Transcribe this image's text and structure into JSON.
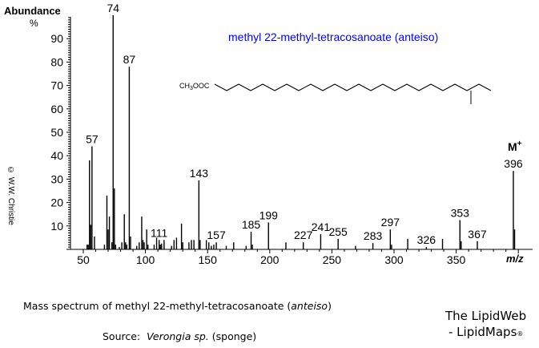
{
  "figure": {
    "compound_title": "methyl 22-methyl-tetracosanoate (anteiso)",
    "structure_label": "CH3OOC",
    "ylabel_title": "Abundance",
    "ylabel_unit": "%",
    "xlabel": "m/z",
    "molecular_ion_label": "M+",
    "copyright": "© W.W. Christie",
    "colors": {
      "title": "#0000ff",
      "axis": "#000000",
      "peaks": "#000000"
    }
  },
  "caption": {
    "line1_prefix": "Mass spectrum of methyl 22-methyl-tetracosanoate (",
    "line1_italic": "anteiso",
    "line1_suffix": ")",
    "line2_prefix": "Source:  ",
    "line2_italic": "Verongia sp.",
    "line2_suffix": " (sponge)"
  },
  "branding": {
    "line1": "The LipidWeb",
    "line2": "- LipidMaps",
    "reg": "®"
  },
  "chart_data": {
    "type": "bar",
    "title": "methyl 22-methyl-tetracosanoate (anteiso)",
    "xlabel": "m/z",
    "ylabel": "Abundance %",
    "xlim": [
      40,
      410
    ],
    "ylim": [
      0,
      100
    ],
    "xticks": [
      50,
      100,
      150,
      200,
      250,
      300,
      350
    ],
    "yticks": [
      10,
      20,
      30,
      40,
      50,
      60,
      70,
      80,
      90
    ],
    "grid": false,
    "peaks": [
      {
        "mz": 53,
        "abundance": 2
      },
      {
        "mz": 54,
        "abundance": 2
      },
      {
        "mz": 55,
        "abundance": 38
      },
      {
        "mz": 56,
        "abundance": 10.5
      },
      {
        "mz": 57,
        "abundance": 44,
        "label": "57"
      },
      {
        "mz": 59,
        "abundance": 5.5
      },
      {
        "mz": 67,
        "abundance": 2
      },
      {
        "mz": 69,
        "abundance": 23
      },
      {
        "mz": 70,
        "abundance": 8.5
      },
      {
        "mz": 71,
        "abundance": 14
      },
      {
        "mz": 73,
        "abundance": 3
      },
      {
        "mz": 74,
        "abundance": 100,
        "label": "74"
      },
      {
        "mz": 75,
        "abundance": 26
      },
      {
        "mz": 76,
        "abundance": 2
      },
      {
        "mz": 79,
        "abundance": 1
      },
      {
        "mz": 81,
        "abundance": 3
      },
      {
        "mz": 83,
        "abundance": 15
      },
      {
        "mz": 84,
        "abundance": 3
      },
      {
        "mz": 85,
        "abundance": 2
      },
      {
        "mz": 87,
        "abundance": 78,
        "label": "87"
      },
      {
        "mz": 88,
        "abundance": 5.5
      },
      {
        "mz": 93,
        "abundance": 1.5
      },
      {
        "mz": 95,
        "abundance": 3
      },
      {
        "mz": 97,
        "abundance": 14
      },
      {
        "mz": 98,
        "abundance": 4
      },
      {
        "mz": 99,
        "abundance": 3
      },
      {
        "mz": 101,
        "abundance": 8.5
      },
      {
        "mz": 102,
        "abundance": 2
      },
      {
        "mz": 107,
        "abundance": 2
      },
      {
        "mz": 109,
        "abundance": 5
      },
      {
        "mz": 111,
        "abundance": 4,
        "label": "111"
      },
      {
        "mz": 112,
        "abundance": 2
      },
      {
        "mz": 113,
        "abundance": 2.5
      },
      {
        "mz": 115,
        "abundance": 4
      },
      {
        "mz": 121,
        "abundance": 1.5
      },
      {
        "mz": 123,
        "abundance": 4
      },
      {
        "mz": 125,
        "abundance": 5
      },
      {
        "mz": 129,
        "abundance": 11
      },
      {
        "mz": 130,
        "abundance": 3
      },
      {
        "mz": 135,
        "abundance": 3
      },
      {
        "mz": 137,
        "abundance": 4
      },
      {
        "mz": 139,
        "abundance": 4
      },
      {
        "mz": 143,
        "abundance": 29.5,
        "label": "143"
      },
      {
        "mz": 144,
        "abundance": 4
      },
      {
        "mz": 149,
        "abundance": 4
      },
      {
        "mz": 151,
        "abundance": 3
      },
      {
        "mz": 153,
        "abundance": 1.5
      },
      {
        "mz": 155,
        "abundance": 2
      },
      {
        "mz": 157,
        "abundance": 3,
        "label": "157"
      },
      {
        "mz": 165,
        "abundance": 1.5
      },
      {
        "mz": 171,
        "abundance": 3
      },
      {
        "mz": 181,
        "abundance": 1.5
      },
      {
        "mz": 185,
        "abundance": 7.5,
        "label": "185"
      },
      {
        "mz": 186,
        "abundance": 2
      },
      {
        "mz": 199,
        "abundance": 11.5,
        "label": "199"
      },
      {
        "mz": 213,
        "abundance": 3
      },
      {
        "mz": 227,
        "abundance": 3,
        "label": "227"
      },
      {
        "mz": 241,
        "abundance": 6.5,
        "label": "241"
      },
      {
        "mz": 255,
        "abundance": 4.5,
        "label": "255"
      },
      {
        "mz": 269,
        "abundance": 1.5
      },
      {
        "mz": 283,
        "abundance": 2.7,
        "label": "283"
      },
      {
        "mz": 297,
        "abundance": 8.5,
        "label": "297"
      },
      {
        "mz": 298,
        "abundance": 2
      },
      {
        "mz": 311,
        "abundance": 4.5
      },
      {
        "mz": 326,
        "abundance": 1,
        "label": "326"
      },
      {
        "mz": 339,
        "abundance": 4.5
      },
      {
        "mz": 353,
        "abundance": 12.5,
        "label": "353"
      },
      {
        "mz": 354,
        "abundance": 3.5
      },
      {
        "mz": 367,
        "abundance": 3.5,
        "label": "367"
      },
      {
        "mz": 396,
        "abundance": 33.5,
        "label": "396"
      },
      {
        "mz": 397,
        "abundance": 8.5
      }
    ]
  }
}
